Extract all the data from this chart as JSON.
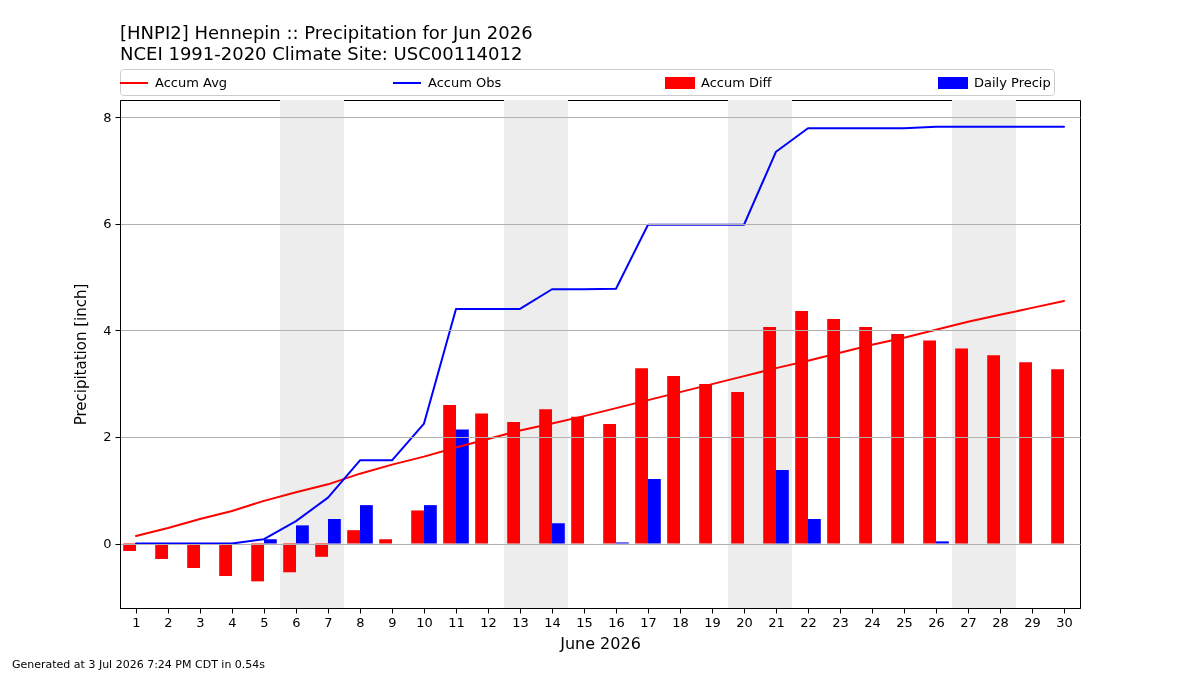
{
  "chart_data": {
    "type": "bar",
    "title": "[HNPI2] Hennepin :: Precipitation for Jun 2026",
    "subtitle": "NCEI 1991-2020 Climate Site: USC00114012",
    "xlabel": "June 2026",
    "ylabel": "Precipitation [inch]",
    "x": [
      1,
      2,
      3,
      4,
      5,
      6,
      7,
      8,
      9,
      10,
      11,
      12,
      13,
      14,
      15,
      16,
      17,
      18,
      19,
      20,
      21,
      22,
      23,
      24,
      25,
      26,
      27,
      28,
      29,
      30
    ],
    "xlim": [
      0.5,
      30.5
    ],
    "xticks": [
      1,
      2,
      3,
      4,
      5,
      6,
      7,
      8,
      9,
      10,
      11,
      12,
      13,
      14,
      15,
      16,
      17,
      18,
      19,
      20,
      21,
      22,
      23,
      24,
      25,
      26,
      27,
      28,
      29,
      30
    ],
    "ylim": [
      -1.21,
      8.32
    ],
    "yticks": [
      0,
      2,
      4,
      6,
      8
    ],
    "series": [
      {
        "name": "Accum Avg",
        "type": "line",
        "color": "#ff0000",
        "values": [
          0.14,
          0.29,
          0.46,
          0.61,
          0.8,
          0.96,
          1.11,
          1.31,
          1.48,
          1.63,
          1.8,
          1.96,
          2.12,
          2.25,
          2.39,
          2.54,
          2.69,
          2.84,
          2.99,
          3.14,
          3.29,
          3.43,
          3.58,
          3.73,
          3.86,
          4.01,
          4.16,
          4.29,
          4.42,
          4.55
        ]
      },
      {
        "name": "Accum Obs",
        "type": "line",
        "color": "#0000ff",
        "values": [
          0,
          0,
          0,
          0,
          0.08,
          0.42,
          0.86,
          1.56,
          1.56,
          2.25,
          4.4,
          4.4,
          4.4,
          4.77,
          4.77,
          4.78,
          5.98,
          5.98,
          5.98,
          5.98,
          7.35,
          7.79,
          7.79,
          7.79,
          7.79,
          7.82,
          7.82,
          7.82,
          7.82,
          7.82
        ]
      },
      {
        "name": "Accum Diff",
        "color": "#ff0000",
        "values": [
          -0.14,
          -0.29,
          -0.46,
          -0.61,
          -0.71,
          -0.54,
          -0.25,
          0.25,
          0.08,
          0.62,
          2.6,
          2.44,
          2.28,
          2.52,
          2.38,
          2.24,
          3.29,
          3.14,
          2.99,
          2.84,
          4.06,
          4.36,
          4.21,
          4.06,
          3.93,
          3.81,
          3.66,
          3.53,
          3.4,
          3.27
        ]
      },
      {
        "name": "Daily Precip",
        "color": "#0000ff",
        "values": [
          0,
          0,
          0,
          0,
          0.08,
          0.34,
          0.46,
          0.72,
          0,
          0.72,
          2.14,
          0,
          0,
          0.38,
          0,
          0.02,
          1.21,
          0,
          0,
          0,
          1.38,
          0.46,
          0,
          0,
          0,
          0.04,
          0,
          0,
          0,
          0
        ]
      }
    ],
    "bands": [
      {
        "axis": "x",
        "from": 5.5,
        "to": 7.5,
        "color": "#ededed"
      },
      {
        "axis": "x",
        "from": 12.5,
        "to": 14.5,
        "color": "#ededed"
      },
      {
        "axis": "x",
        "from": 19.5,
        "to": 21.5,
        "color": "#ededed"
      },
      {
        "axis": "x",
        "from": 26.5,
        "to": 28.5,
        "color": "#ededed"
      }
    ],
    "grid": "y",
    "legend": "top",
    "annotations": [
      "Generated at 3 Jul 2026 7:24 PM CDT in 0.54s"
    ]
  }
}
